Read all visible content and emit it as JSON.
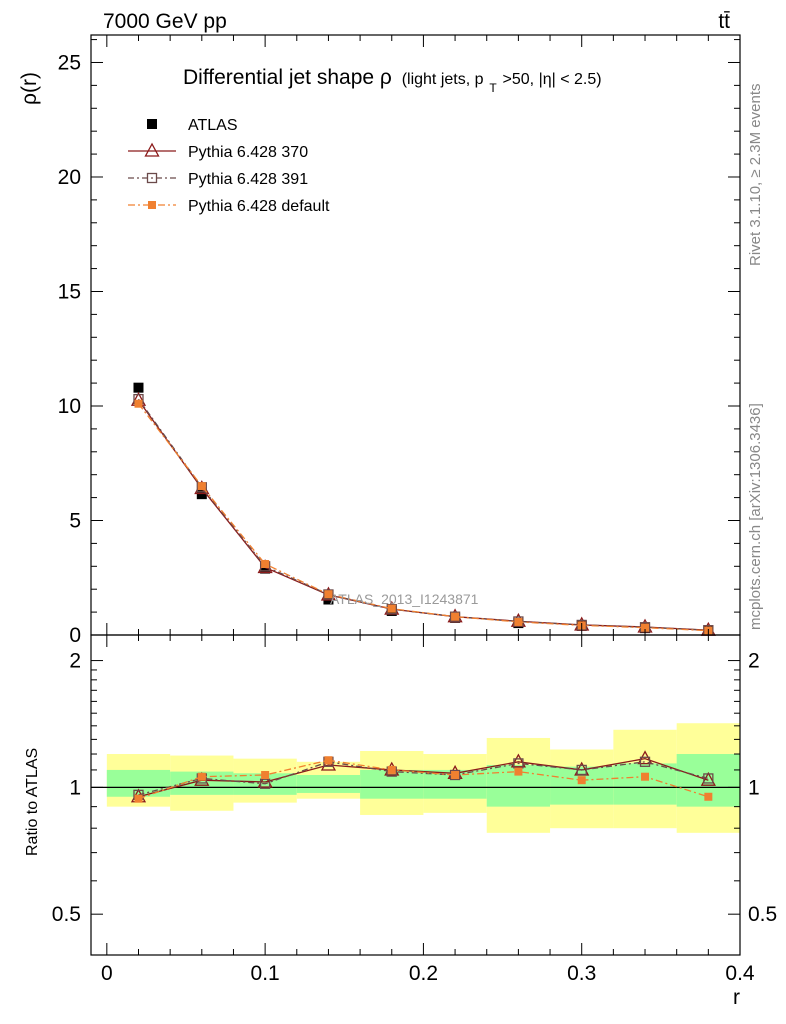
{
  "header": {
    "energy_label": "7000 GeV pp",
    "process_label": "tt̄"
  },
  "side_labels": {
    "rivet": "Rivet 3.1.10, ≥ 2.3M events",
    "mcplots": "mcplots.cern.ch [arXiv:1306.3436]"
  },
  "chart_data": [
    {
      "type": "line",
      "title_main": "Differential jet shape ρ",
      "title_sub_a": "(light jets, p",
      "title_sub_sub": "T",
      "title_sub_b": ">50, |η| < 2.5)",
      "ylabel": "ρ(r)",
      "xlabel": "",
      "ylim": [
        0,
        26.2
      ],
      "xlim": [
        -0.01,
        0.4
      ],
      "yticks": [
        0,
        5,
        10,
        15,
        20,
        25
      ],
      "ytick_labels": [
        "0",
        "5",
        "10",
        "15",
        "20",
        "25"
      ],
      "watermark": "ATLAS_2013_I1243871",
      "legend_position": "top-left",
      "x": [
        0.02,
        0.06,
        0.1,
        0.14,
        0.18,
        0.22,
        0.26,
        0.3,
        0.34,
        0.38
      ],
      "series": [
        {
          "name": "ATLAS",
          "style": "data",
          "color": "#000000",
          "values": [
            10.8,
            6.15,
            2.9,
            1.55,
            1.05,
            0.75,
            0.52,
            0.4,
            0.3,
            0.2
          ]
        },
        {
          "name": "Pythia 6.428 370",
          "style": "open-triangle",
          "color": "#8b1a1a",
          "values": [
            10.25,
            6.4,
            2.95,
            1.75,
            1.13,
            0.8,
            0.6,
            0.44,
            0.35,
            0.21
          ]
        },
        {
          "name": "Pythia 6.428 391",
          "style": "open-square",
          "color": "#6b4a4a",
          "values": [
            10.3,
            6.45,
            3.0,
            1.77,
            1.13,
            0.8,
            0.59,
            0.44,
            0.34,
            0.21
          ]
        },
        {
          "name": "Pythia 6.428 default",
          "style": "filled-square",
          "color": "#f08030",
          "values": [
            10.1,
            6.5,
            3.1,
            1.78,
            1.15,
            0.8,
            0.57,
            0.42,
            0.32,
            0.19
          ]
        }
      ]
    },
    {
      "type": "line",
      "ylabel": "Ratio to ATLAS",
      "xlabel": "r",
      "ylim": [
        0.4,
        2.3
      ],
      "xlim": [
        -0.01,
        0.4
      ],
      "yticks": [
        0.5,
        1,
        2
      ],
      "ytick_labels": [
        "0.5",
        "1",
        "2"
      ],
      "xticks": [
        0,
        0.1,
        0.2,
        0.3,
        0.4
      ],
      "xtick_labels": [
        "0",
        "0.1",
        "0.2",
        "0.3",
        "0.4"
      ],
      "uncertainty_bands": {
        "edges": [
          0.0,
          0.04,
          0.08,
          0.12,
          0.16,
          0.2,
          0.24,
          0.28,
          0.32,
          0.36,
          0.4
        ],
        "inner_color": "#99ff99",
        "outer_color": "#ffff99",
        "inner_low": [
          0.95,
          0.96,
          0.96,
          0.97,
          0.94,
          0.94,
          0.9,
          0.91,
          0.91,
          0.9
        ],
        "inner_high": [
          1.1,
          1.09,
          1.08,
          1.07,
          1.1,
          1.1,
          1.13,
          1.12,
          1.14,
          1.2
        ],
        "outer_low": [
          0.9,
          0.88,
          0.92,
          0.94,
          0.86,
          0.87,
          0.78,
          0.8,
          0.8,
          0.78
        ],
        "outer_high": [
          1.2,
          1.19,
          1.17,
          1.15,
          1.22,
          1.2,
          1.31,
          1.23,
          1.37,
          1.42
        ]
      },
      "x": [
        0.02,
        0.06,
        0.1,
        0.14,
        0.18,
        0.22,
        0.26,
        0.3,
        0.34,
        0.38
      ],
      "series": [
        {
          "name": "Pythia 6.428 370",
          "style": "open-triangle",
          "color": "#8b1a1a",
          "values": [
            0.95,
            1.04,
            1.03,
            1.13,
            1.1,
            1.08,
            1.15,
            1.1,
            1.17,
            1.04
          ]
        },
        {
          "name": "Pythia 6.428 391",
          "style": "open-square",
          "color": "#6b4a4a",
          "values": [
            0.96,
            1.05,
            1.02,
            1.15,
            1.09,
            1.07,
            1.14,
            1.1,
            1.15,
            1.05
          ]
        },
        {
          "name": "Pythia 6.428 default",
          "style": "filled-square",
          "color": "#f08030",
          "values": [
            0.94,
            1.06,
            1.07,
            1.16,
            1.1,
            1.07,
            1.09,
            1.04,
            1.06,
            0.95
          ]
        }
      ]
    }
  ]
}
